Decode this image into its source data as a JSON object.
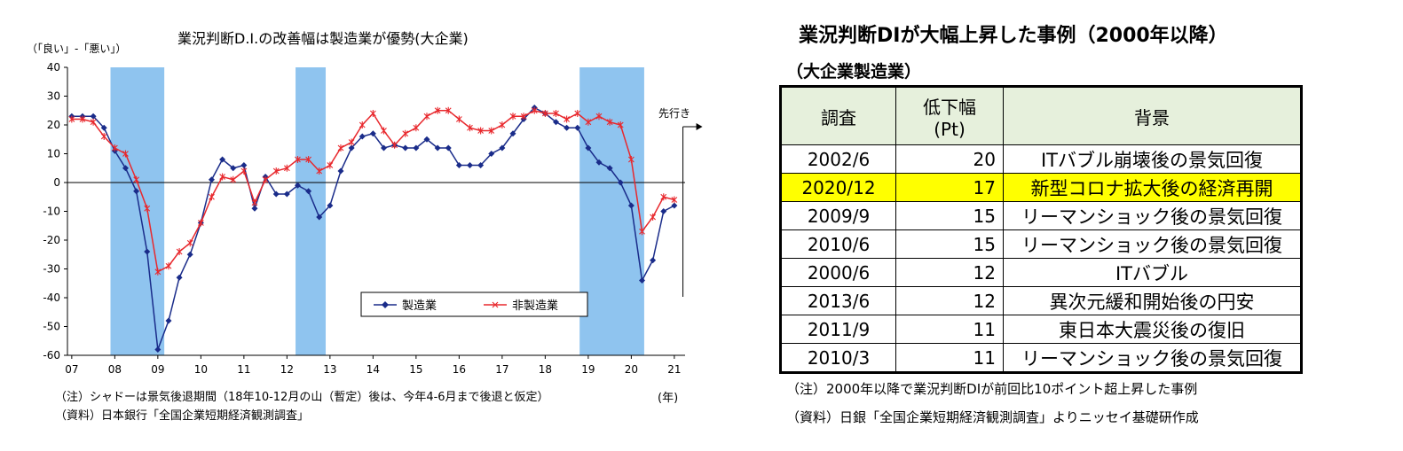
{
  "chart_data": {
    "type": "line",
    "title": "業況判断D.I.の改善幅は製造業が優勢(大企業)",
    "ylabel": "（「良い」-「悪い」）",
    "xlabel": "(年)",
    "ylim": [
      -60,
      40
    ],
    "yticks": [
      40,
      30,
      20,
      10,
      0,
      -10,
      -20,
      -30,
      -40,
      -50,
      -60
    ],
    "xticks": [
      "07",
      "08",
      "09",
      "10",
      "11",
      "12",
      "13",
      "14",
      "15",
      "16",
      "17",
      "18",
      "19",
      "20",
      "21"
    ],
    "x_start": 2007.0,
    "x_step": 0.25,
    "shaded_periods": [
      [
        2007.9,
        2009.15
      ],
      [
        2012.2,
        2012.9
      ],
      [
        2018.8,
        2020.3
      ]
    ],
    "annotation": "先行き",
    "series": [
      {
        "name": "製造業",
        "color": "#1a2c8a",
        "marker": "diamond",
        "values": [
          23,
          23,
          23,
          19,
          11,
          5,
          -3,
          -24,
          -58,
          -48,
          -33,
          -25,
          -14,
          1,
          8,
          5,
          6,
          -9,
          2,
          -4,
          -4,
          -1,
          -3,
          -12,
          -8,
          4,
          12,
          16,
          17,
          12,
          13,
          12,
          12,
          15,
          12,
          12,
          6,
          6,
          6,
          10,
          12,
          17,
          22,
          26,
          24,
          21,
          19,
          19,
          12,
          7,
          5,
          0,
          -8,
          -34,
          -27,
          -10,
          -8
        ]
      },
      {
        "name": "非製造業",
        "color": "#e8282d",
        "marker": "x",
        "values": [
          22,
          22,
          21,
          16,
          12,
          10,
          1,
          -9,
          -31,
          -29,
          -24,
          -21,
          -14,
          -5,
          2,
          1,
          4,
          -7,
          1,
          4,
          5,
          8,
          8,
          4,
          6,
          12,
          14,
          20,
          24,
          18,
          13,
          17,
          19,
          23,
          25,
          25,
          22,
          19,
          18,
          18,
          20,
          23,
          23,
          25,
          24,
          24,
          22,
          24,
          21,
          23,
          21,
          20,
          8,
          -17,
          -12,
          -5,
          -6
        ]
      }
    ]
  },
  "footnotes": {
    "note": "（注）シャドーは景気後退期間（18年10-12月の山（暫定）後は、今年4-6月まで後退と仮定）",
    "source": "（資料）日本銀行「全国企業短期経済観測調査」"
  },
  "table": {
    "title": "業況判断DIが大幅上昇した事例（2000年以降）",
    "subtitle": "（大企業製造業）",
    "headers": {
      "date": "調査",
      "drop_line1": "低下幅",
      "drop_line2": "(Pt)",
      "background": "背景"
    },
    "rows": [
      {
        "date": "2002/6",
        "drop": "20",
        "background": "ITバブル崩壊後の景気回復"
      },
      {
        "date": "2020/12",
        "drop": "17",
        "background": "新型コロナ拡大後の経済再開"
      },
      {
        "date": "2009/9",
        "drop": "15",
        "background": "リーマンショック後の景気回復"
      },
      {
        "date": "2010/6",
        "drop": "15",
        "background": "リーマンショック後の景気回復"
      },
      {
        "date": "2000/6",
        "drop": "12",
        "background": "ITバブル"
      },
      {
        "date": "2013/6",
        "drop": "12",
        "background": "異次元緩和開始後の円安"
      },
      {
        "date": "2011/9",
        "drop": "11",
        "background": "東日本大震災後の復旧"
      },
      {
        "date": "2010/3",
        "drop": "11",
        "background": "リーマンショック後の景気回復"
      }
    ],
    "highlight_color": "#ffff00",
    "note": "（注）2000年以降で業況判断DIが前回比10ポイント超上昇した事例",
    "source": "（資料）日銀「全国企業短期経済観測調査」よりニッセイ基礎研作成"
  }
}
